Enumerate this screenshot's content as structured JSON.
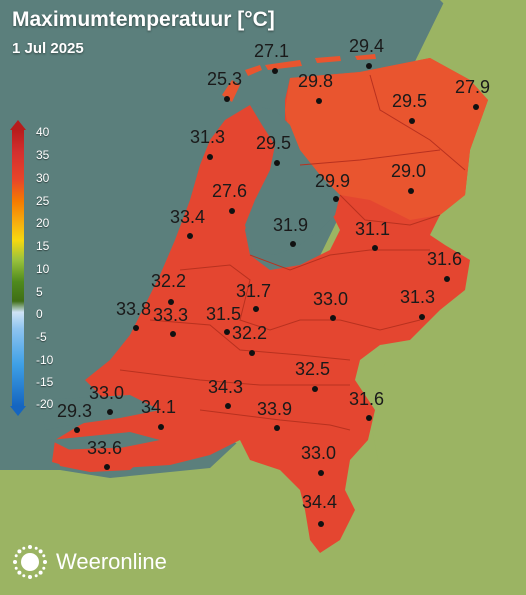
{
  "header": {
    "title": "Maximumtemperatuur [°C]",
    "date": "1 Jul 2025"
  },
  "legend": {
    "ticks": [
      "40",
      "35",
      "30",
      "25",
      "20",
      "15",
      "10",
      "5",
      "0",
      "-5",
      "-10",
      "-15",
      "-20"
    ],
    "colors": {
      "hot": "#c62828",
      "warm": "#e8452a",
      "mid": "#f39c12",
      "yellow": "#f6d90f",
      "green": "#4f8a1d",
      "cold": "#3ea0e6"
    }
  },
  "map_colors": {
    "sea": "#5b7f7c",
    "land_outside": "#9bb463",
    "nl_hot": "#e44630",
    "nl_north": "#ea5a2e",
    "water": "#5b7f7c"
  },
  "stations": [
    {
      "id": "s1",
      "value": "27.1"
    },
    {
      "id": "s2",
      "value": "29.4"
    },
    {
      "id": "s3",
      "value": "25.3"
    },
    {
      "id": "s4",
      "value": "29.8"
    },
    {
      "id": "s5",
      "value": "27.9"
    },
    {
      "id": "s6",
      "value": "29.5"
    },
    {
      "id": "s7",
      "value": "31.3"
    },
    {
      "id": "s8",
      "value": "29.5"
    },
    {
      "id": "s9",
      "value": "29.0"
    },
    {
      "id": "s10",
      "value": "27.6"
    },
    {
      "id": "s11",
      "value": "29.9"
    },
    {
      "id": "s12",
      "value": "33.4"
    },
    {
      "id": "s13",
      "value": "31.9"
    },
    {
      "id": "s14",
      "value": "31.1"
    },
    {
      "id": "s15",
      "value": "31.6"
    },
    {
      "id": "s16",
      "value": "32.2"
    },
    {
      "id": "s17",
      "value": "31.7"
    },
    {
      "id": "s18",
      "value": "33.0"
    },
    {
      "id": "s19",
      "value": "31.3"
    },
    {
      "id": "s20",
      "value": "33.8"
    },
    {
      "id": "s21",
      "value": "33.3"
    },
    {
      "id": "s22",
      "value": "31.5"
    },
    {
      "id": "s23",
      "value": "32.2"
    },
    {
      "id": "s24",
      "value": "32.5"
    },
    {
      "id": "s25",
      "value": "33.0"
    },
    {
      "id": "s26",
      "value": "34.3"
    },
    {
      "id": "s27",
      "value": "29.3"
    },
    {
      "id": "s28",
      "value": "34.1"
    },
    {
      "id": "s29",
      "value": "31.6"
    },
    {
      "id": "s30",
      "value": "33.9"
    },
    {
      "id": "s31",
      "value": "33.6"
    },
    {
      "id": "s32",
      "value": "33.0"
    },
    {
      "id": "s33",
      "value": "34.4"
    }
  ],
  "brand": {
    "name": "Weeronline"
  }
}
